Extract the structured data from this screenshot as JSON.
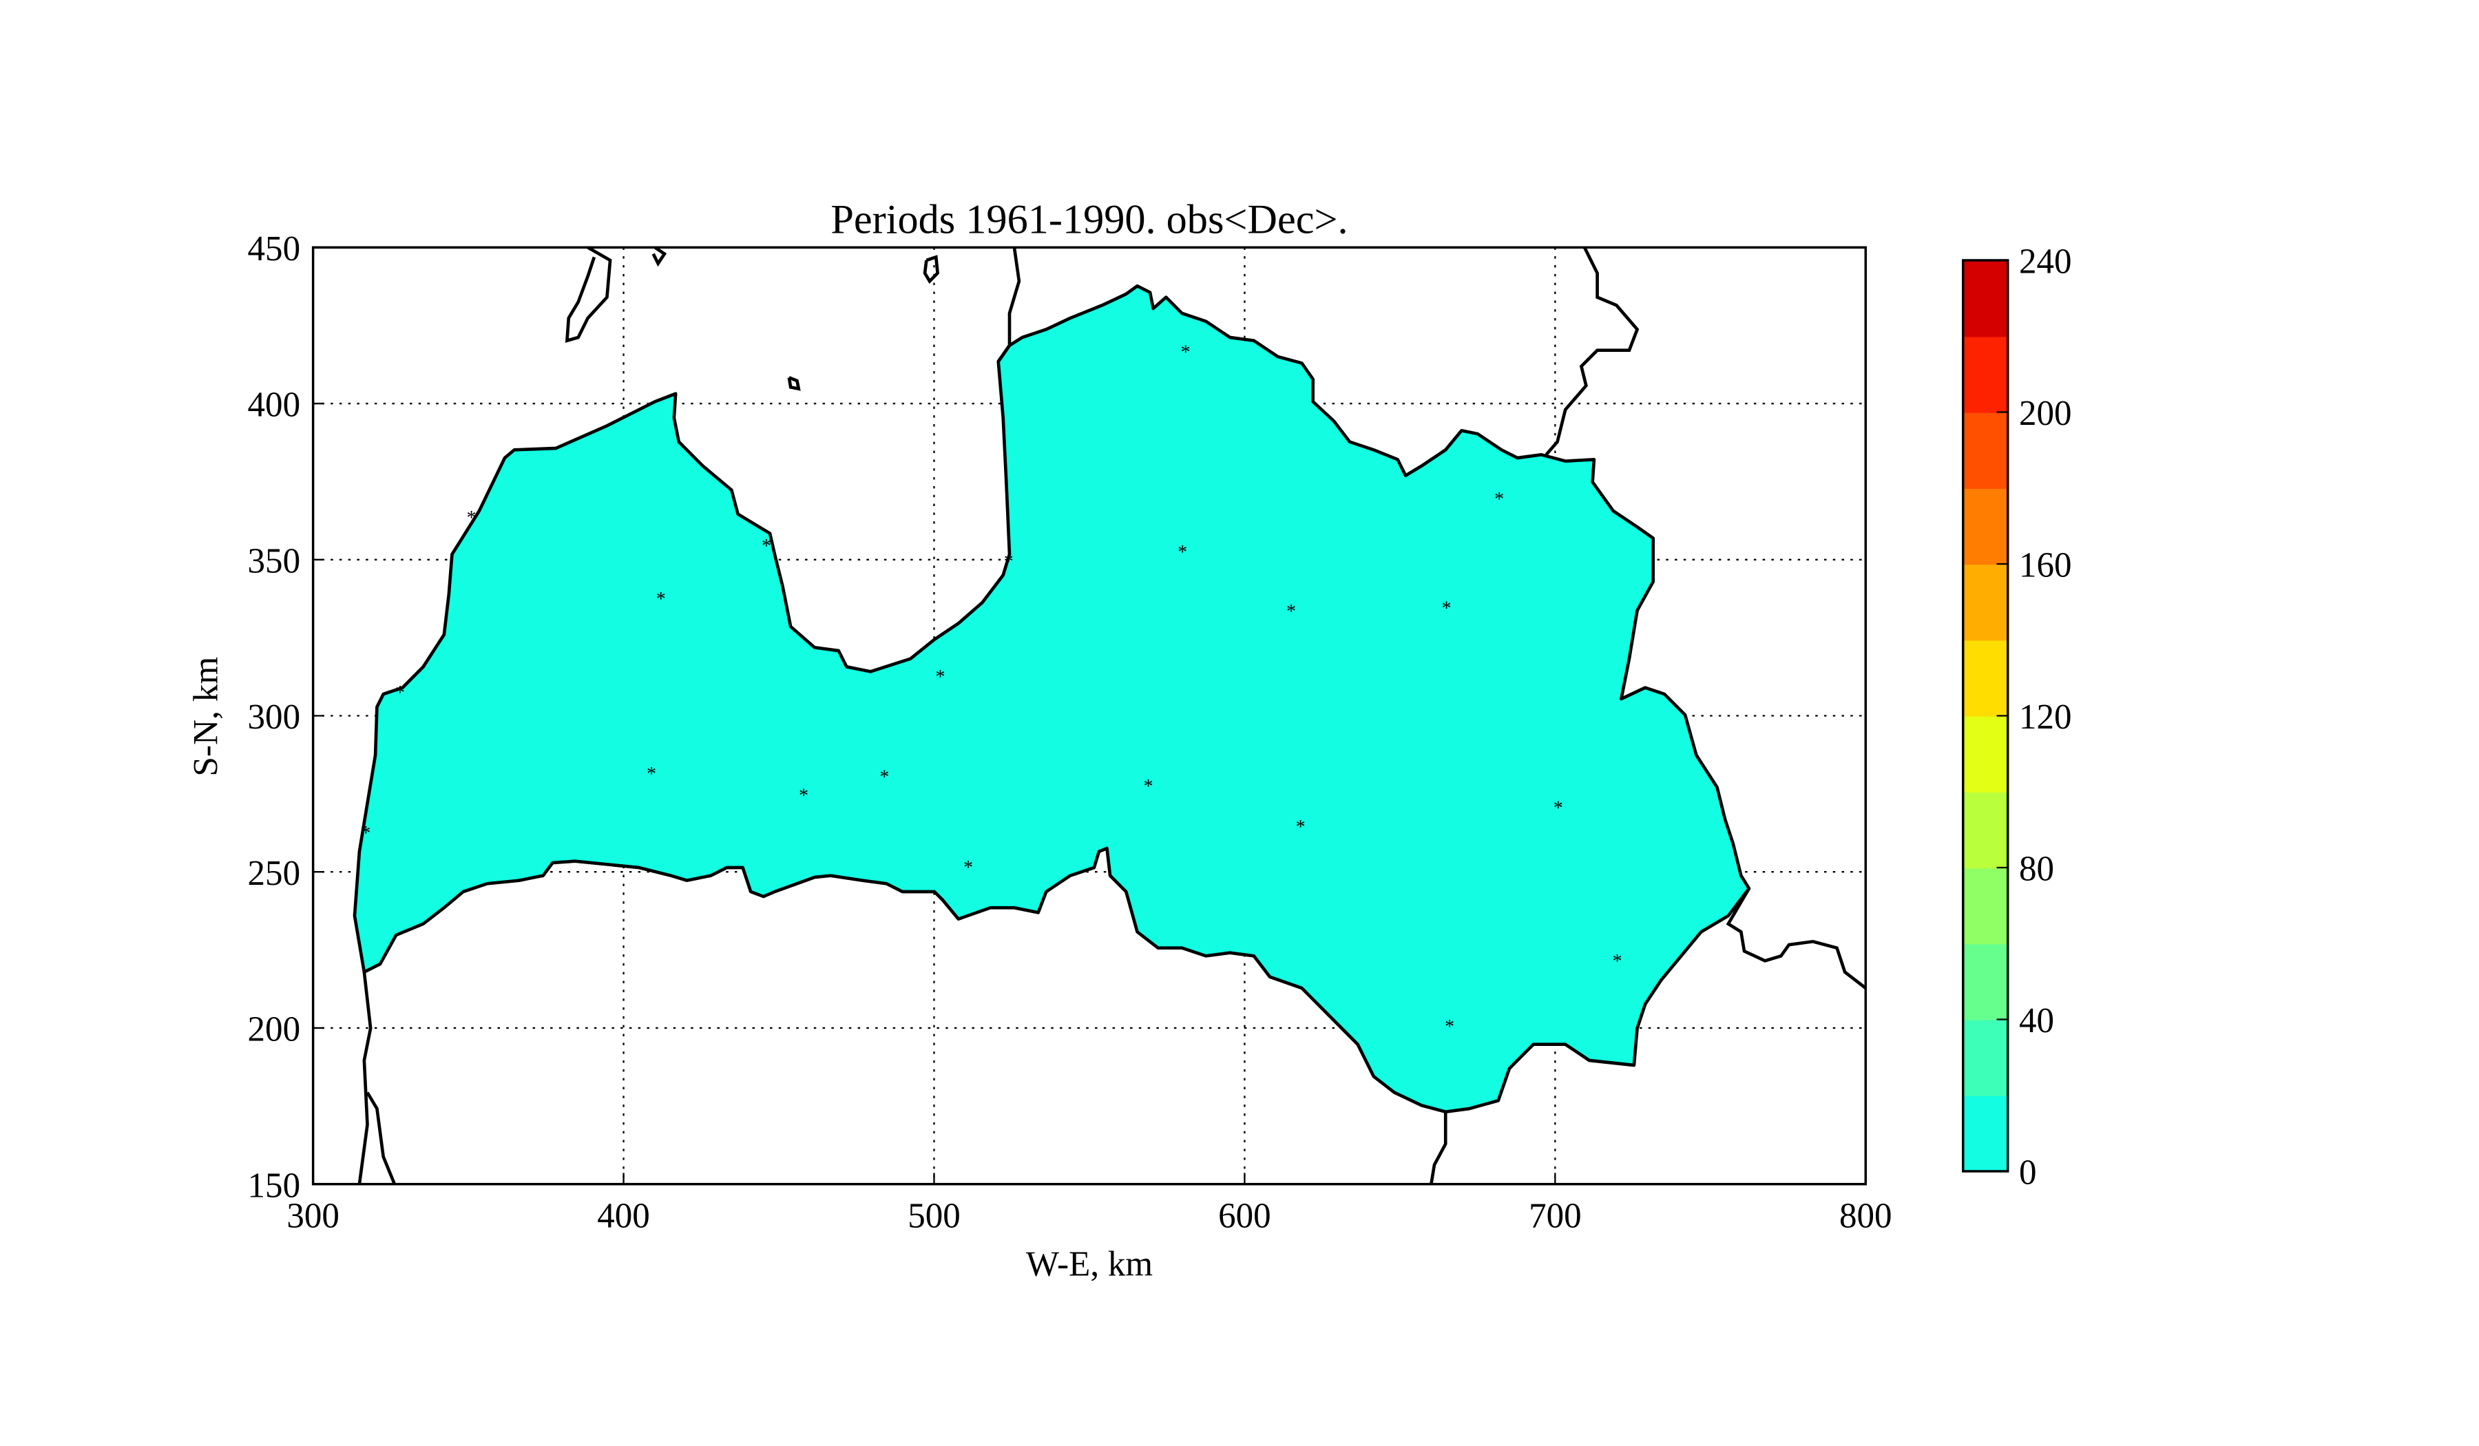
{
  "chart_data": {
    "type": "heatmap",
    "title": "Periods 1961-1990. obs<Dec>.",
    "xlabel": "W-E, km",
    "ylabel": "S-N, km",
    "xlim": [
      300,
      800
    ],
    "ylim": [
      150,
      450
    ],
    "xticks": [
      "300",
      "400",
      "500",
      "600",
      "700",
      "800"
    ],
    "yticks": [
      "150",
      "200",
      "250",
      "300",
      "350",
      "400",
      "450"
    ],
    "grid": true,
    "filled_region_level": [
      0,
      20
    ],
    "filled_region_color": "#12fde2",
    "stations": [
      [
        581,
        417
      ],
      [
        412,
        338
      ],
      [
        446,
        355
      ],
      [
        524,
        350
      ],
      [
        580,
        353
      ],
      [
        615,
        334
      ],
      [
        665,
        335
      ],
      [
        682,
        370
      ],
      [
        502,
        313
      ],
      [
        409,
        282
      ],
      [
        458,
        275
      ],
      [
        484,
        281
      ],
      [
        511,
        252
      ],
      [
        569,
        278
      ],
      [
        618,
        265
      ],
      [
        701,
        271
      ],
      [
        720,
        222
      ],
      [
        666,
        201
      ],
      [
        317,
        263
      ],
      [
        328,
        308
      ],
      [
        351,
        364
      ]
    ],
    "colorbar": {
      "levels": [
        0,
        20,
        40,
        60,
        80,
        100,
        120,
        140,
        160,
        180,
        200,
        220,
        240
      ],
      "tick_labels": [
        "0",
        "40",
        "80",
        "120",
        "160",
        "200",
        "240"
      ],
      "colors": [
        "#12fde2",
        "#3effb8",
        "#66ff8e",
        "#90ff66",
        "#baff3c",
        "#e2ff14",
        "#ffdd00",
        "#ffad00",
        "#ff7d00",
        "#ff5000",
        "#ff2200",
        "#d40000"
      ]
    }
  }
}
